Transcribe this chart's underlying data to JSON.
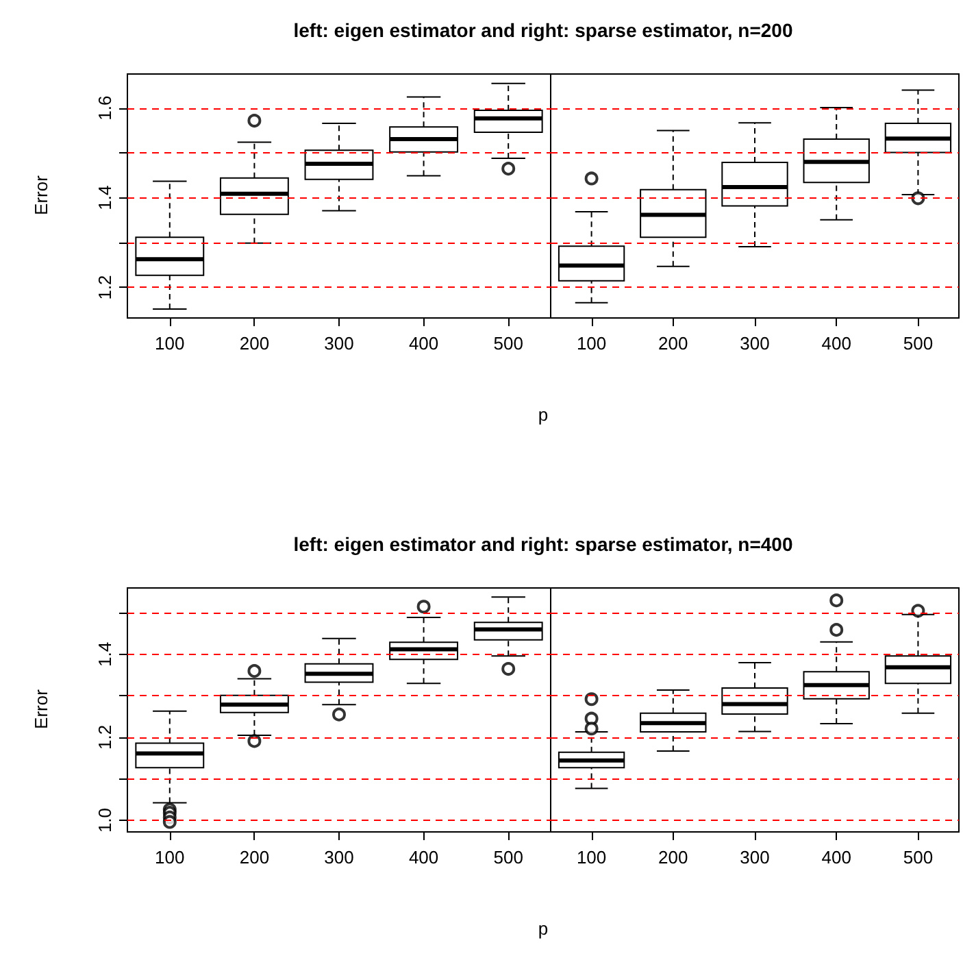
{
  "chart_data": [
    {
      "type": "box",
      "title": "left: eigen estimator and right: sparse estimator, n=200",
      "xlabel": "p",
      "ylabel": "Error",
      "categories": [
        "100",
        "200",
        "300",
        "400",
        "500"
      ],
      "ylim": [
        1.132,
        1.676
      ],
      "yticks": [
        1.2,
        {
          "value": 1.3,
          "label": null
        },
        1.4,
        {
          "value": 1.5,
          "label": null
        },
        1.6
      ],
      "boxes": [
        {
          "low": 1.152,
          "q1": 1.227,
          "median": 1.263,
          "q3": 1.312,
          "high": 1.437
        },
        {
          "low": 1.299,
          "q1": 1.363,
          "median": 1.409,
          "q3": 1.444,
          "high": 1.524,
          "outliers": [
            1.572
          ]
        },
        {
          "low": 1.371,
          "q1": 1.441,
          "median": 1.476,
          "q3": 1.506,
          "high": 1.566
        },
        {
          "low": 1.449,
          "q1": 1.502,
          "median": 1.531,
          "q3": 1.558,
          "high": 1.625
        },
        {
          "low": 1.488,
          "q1": 1.546,
          "median": 1.577,
          "q3": 1.595,
          "high": 1.655,
          "outliers": [
            1.465
          ]
        }
      ],
      "ref_lines": [
        {
          "axis": "y",
          "value": 1.2,
          "color": "#ff0000",
          "line_style": "dashed"
        },
        {
          "axis": "y",
          "value": 1.3,
          "color": "#ff0000",
          "line_style": "dashed"
        },
        {
          "axis": "y",
          "value": 1.4,
          "color": "#ff0000",
          "line_style": "dashed"
        },
        {
          "axis": "y",
          "value": 1.5,
          "color": "#ff0000",
          "line_style": "dashed"
        },
        {
          "axis": "y",
          "value": 1.6,
          "color": "#ff0000",
          "line_style": "dashed"
        }
      ]
    },
    {
      "type": "box",
      "categories": [
        "100",
        "200",
        "300",
        "400",
        "500"
      ],
      "ylim": [
        1.132,
        1.676
      ],
      "tick_labels": "x",
      "boxes": [
        {
          "low": 1.166,
          "q1": 1.215,
          "median": 1.249,
          "q3": 1.292,
          "high": 1.369,
          "outliers": [
            1.443
          ]
        },
        {
          "low": 1.247,
          "q1": 1.312,
          "median": 1.362,
          "q3": 1.418,
          "high": 1.55
        },
        {
          "low": 1.291,
          "q1": 1.382,
          "median": 1.424,
          "q3": 1.479,
          "high": 1.567
        },
        {
          "low": 1.351,
          "q1": 1.434,
          "median": 1.48,
          "q3": 1.531,
          "high": 1.601
        },
        {
          "low": 1.407,
          "q1": 1.501,
          "median": 1.532,
          "q3": 1.566,
          "high": 1.64,
          "outliers": [
            1.399
          ]
        }
      ],
      "ref_lines": [
        {
          "axis": "y",
          "value": 1.2,
          "color": "#ff0000",
          "line_style": "dashed"
        },
        {
          "axis": "y",
          "value": 1.3,
          "color": "#ff0000",
          "line_style": "dashed"
        },
        {
          "axis": "y",
          "value": 1.4,
          "color": "#ff0000",
          "line_style": "dashed"
        },
        {
          "axis": "y",
          "value": 1.5,
          "color": "#ff0000",
          "line_style": "dashed"
        },
        {
          "axis": "y",
          "value": 1.6,
          "color": "#ff0000",
          "line_style": "dashed"
        }
      ]
    },
    {
      "type": "box",
      "title": "left: eigen estimator and right: sparse estimator, n=400",
      "xlabel": "p",
      "ylabel": "Error",
      "categories": [
        "100",
        "200",
        "300",
        "400",
        "500"
      ],
      "ylim": [
        0.972,
        1.56
      ],
      "yticks": [
        {
          "value": 1.0,
          "label": "1.0"
        },
        {
          "value": 1.1,
          "label": null
        },
        1.2,
        {
          "value": 1.3,
          "label": null
        },
        1.4,
        {
          "value": 1.5,
          "label": null
        }
      ],
      "boxes": [
        {
          "low": 1.042,
          "q1": 1.127,
          "median": 1.161,
          "q3": 1.186,
          "high": 1.263,
          "outliers": [
            1.026,
            1.018,
            1.007,
            0.996
          ]
        },
        {
          "low": 1.205,
          "q1": 1.26,
          "median": 1.279,
          "q3": 1.301,
          "high": 1.341,
          "outliers": [
            1.36,
            1.191
          ]
        },
        {
          "low": 1.279,
          "q1": 1.333,
          "median": 1.353,
          "q3": 1.377,
          "high": 1.438,
          "outliers": [
            1.255
          ]
        },
        {
          "low": 1.33,
          "q1": 1.388,
          "median": 1.412,
          "q3": 1.429,
          "high": 1.489,
          "outliers": [
            1.515
          ]
        },
        {
          "low": 1.396,
          "q1": 1.435,
          "median": 1.46,
          "q3": 1.477,
          "high": 1.538,
          "outliers": [
            1.365
          ]
        }
      ],
      "ref_lines": [
        {
          "axis": "y",
          "value": 1.0,
          "color": "#ff0000",
          "line_style": "dashed"
        },
        {
          "axis": "y",
          "value": 1.1,
          "color": "#ff0000",
          "line_style": "dashed"
        },
        {
          "axis": "y",
          "value": 1.2,
          "color": "#ff0000",
          "line_style": "dashed"
        },
        {
          "axis": "y",
          "value": 1.3,
          "color": "#ff0000",
          "line_style": "dashed"
        },
        {
          "axis": "y",
          "value": 1.4,
          "color": "#ff0000",
          "line_style": "dashed"
        },
        {
          "axis": "y",
          "value": 1.5,
          "color": "#ff0000",
          "line_style": "dashed"
        }
      ]
    },
    {
      "type": "box",
      "categories": [
        "100",
        "200",
        "300",
        "400",
        "500"
      ],
      "ylim": [
        0.972,
        1.56
      ],
      "tick_labels": "x",
      "boxes": [
        {
          "low": 1.077,
          "q1": 1.127,
          "median": 1.144,
          "q3": 1.164,
          "high": 1.213,
          "outliers": [
            1.292,
            1.245,
            1.221
          ]
        },
        {
          "low": 1.167,
          "q1": 1.213,
          "median": 1.234,
          "q3": 1.258,
          "high": 1.314
        },
        {
          "low": 1.214,
          "q1": 1.256,
          "median": 1.28,
          "q3": 1.319,
          "high": 1.38
        },
        {
          "low": 1.233,
          "q1": 1.293,
          "median": 1.326,
          "q3": 1.358,
          "high": 1.43,
          "outliers": [
            1.53,
            1.459
          ]
        },
        {
          "low": 1.258,
          "q1": 1.33,
          "median": 1.369,
          "q3": 1.396,
          "high": 1.496,
          "outliers": [
            1.505
          ]
        }
      ],
      "ref_lines": [
        {
          "axis": "y",
          "value": 1.0,
          "color": "#ff0000",
          "line_style": "dashed"
        },
        {
          "axis": "y",
          "value": 1.1,
          "color": "#ff0000",
          "line_style": "dashed"
        },
        {
          "axis": "y",
          "value": 1.2,
          "color": "#ff0000",
          "line_style": "dashed"
        },
        {
          "axis": "y",
          "value": 1.3,
          "color": "#ff0000",
          "line_style": "dashed"
        },
        {
          "axis": "y",
          "value": 1.4,
          "color": "#ff0000",
          "line_style": "dashed"
        },
        {
          "axis": "y",
          "value": 1.5,
          "color": "#ff0000",
          "line_style": "dashed"
        }
      ]
    }
  ]
}
